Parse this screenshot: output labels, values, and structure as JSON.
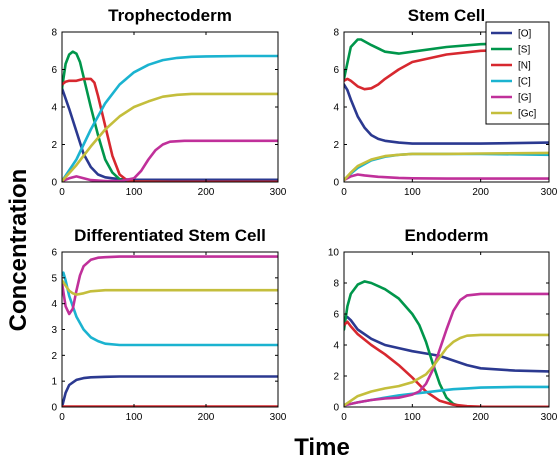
{
  "figure": {
    "ylabel": "Concentration",
    "xlabel": "Time"
  },
  "legend": [
    "[O]",
    "[S]",
    "[N]",
    "[C]",
    "[G]",
    "[Gc]"
  ],
  "colors": [
    "#2b3990",
    "#00964b",
    "#d7282f",
    "#1bb3d0",
    "#c0309a",
    "#c4be3c"
  ],
  "chart_data": [
    {
      "type": "line",
      "title": "Trophectoderm",
      "xlim": [
        0,
        300
      ],
      "ylim": [
        0,
        8
      ],
      "xticks": [
        0,
        100,
        200,
        300
      ],
      "yticks": [
        0,
        2,
        4,
        6,
        8
      ],
      "series": [
        {
          "name": "[O]",
          "x": [
            0,
            10,
            20,
            30,
            40,
            50,
            60,
            70,
            80,
            100,
            150,
            200,
            300
          ],
          "y": [
            5.0,
            3.9,
            2.7,
            1.5,
            0.8,
            0.4,
            0.25,
            0.2,
            0.15,
            0.12,
            0.12,
            0.12,
            0.12
          ]
        },
        {
          "name": "[S]",
          "x": [
            0,
            5,
            10,
            15,
            20,
            25,
            30,
            40,
            50,
            60,
            70,
            80,
            90,
            100,
            150,
            200,
            300
          ],
          "y": [
            5.0,
            6.3,
            6.8,
            6.95,
            6.85,
            6.4,
            5.6,
            4.0,
            2.5,
            1.2,
            0.5,
            0.15,
            0.05,
            0.02,
            0.01,
            0.01,
            0.01
          ]
        },
        {
          "name": "[N]",
          "x": [
            0,
            5,
            10,
            20,
            30,
            40,
            45,
            50,
            60,
            70,
            80,
            90,
            100,
            150,
            200,
            300
          ],
          "y": [
            5.2,
            5.35,
            5.4,
            5.4,
            5.5,
            5.5,
            5.3,
            4.6,
            3.0,
            1.4,
            0.4,
            0.1,
            0.03,
            0.01,
            0.01,
            0.01
          ]
        },
        {
          "name": "[C]",
          "x": [
            0,
            20,
            40,
            60,
            80,
            100,
            120,
            140,
            160,
            180,
            200,
            250,
            300
          ],
          "y": [
            0.05,
            1.2,
            2.8,
            4.2,
            5.2,
            5.85,
            6.25,
            6.5,
            6.62,
            6.68,
            6.7,
            6.72,
            6.72
          ]
        },
        {
          "name": "[G]",
          "x": [
            0,
            10,
            20,
            30,
            40,
            60,
            80,
            100,
            110,
            120,
            130,
            140,
            150,
            170,
            200,
            300
          ],
          "y": [
            0.05,
            0.2,
            0.3,
            0.2,
            0.1,
            0.05,
            0.05,
            0.2,
            0.6,
            1.2,
            1.7,
            2.0,
            2.15,
            2.2,
            2.2,
            2.2
          ]
        },
        {
          "name": "[Gc]",
          "x": [
            0,
            20,
            40,
            60,
            80,
            100,
            120,
            140,
            160,
            180,
            200,
            250,
            300
          ],
          "y": [
            0.05,
            0.9,
            1.9,
            2.8,
            3.5,
            4.0,
            4.3,
            4.55,
            4.65,
            4.7,
            4.7,
            4.7,
            4.7
          ]
        }
      ]
    },
    {
      "type": "line",
      "title": "Stem Cell",
      "xlim": [
        0,
        300
      ],
      "ylim": [
        0,
        8
      ],
      "xticks": [
        0,
        100,
        200,
        300
      ],
      "yticks": [
        0,
        2,
        4,
        6,
        8
      ],
      "series": [
        {
          "name": "[O]",
          "x": [
            0,
            5,
            10,
            20,
            30,
            40,
            50,
            60,
            80,
            100,
            150,
            200,
            300
          ],
          "y": [
            5.2,
            4.9,
            4.4,
            3.5,
            2.9,
            2.5,
            2.3,
            2.2,
            2.1,
            2.05,
            2.05,
            2.05,
            2.1
          ]
        },
        {
          "name": "[S]",
          "x": [
            0,
            10,
            20,
            25,
            30,
            40,
            60,
            80,
            100,
            150,
            200,
            300
          ],
          "y": [
            5.5,
            7.2,
            7.6,
            7.6,
            7.5,
            7.3,
            6.95,
            6.85,
            6.95,
            7.2,
            7.35,
            7.45
          ]
        },
        {
          "name": "[N]",
          "x": [
            0,
            5,
            10,
            20,
            30,
            40,
            50,
            60,
            80,
            100,
            150,
            200,
            300
          ],
          "y": [
            5.4,
            5.5,
            5.4,
            5.1,
            4.95,
            5.0,
            5.2,
            5.5,
            6.0,
            6.4,
            6.8,
            7.0,
            7.1
          ]
        },
        {
          "name": "[C]",
          "x": [
            0,
            10,
            20,
            40,
            60,
            80,
            100,
            150,
            200,
            300
          ],
          "y": [
            0.1,
            0.45,
            0.75,
            1.15,
            1.35,
            1.45,
            1.5,
            1.5,
            1.5,
            1.45
          ]
        },
        {
          "name": "[G]",
          "x": [
            0,
            10,
            20,
            30,
            50,
            80,
            100,
            150,
            200,
            300
          ],
          "y": [
            0.1,
            0.3,
            0.4,
            0.35,
            0.28,
            0.22,
            0.2,
            0.18,
            0.18,
            0.18
          ]
        },
        {
          "name": "[Gc]",
          "x": [
            0,
            10,
            20,
            40,
            60,
            80,
            100,
            150,
            200,
            300
          ],
          "y": [
            0.1,
            0.5,
            0.85,
            1.2,
            1.38,
            1.45,
            1.5,
            1.5,
            1.52,
            1.55
          ]
        }
      ]
    },
    {
      "type": "line",
      "title": "Differentiated Stem Cell",
      "xlim": [
        0,
        300
      ],
      "ylim": [
        0,
        6
      ],
      "xticks": [
        0,
        100,
        200,
        300
      ],
      "yticks": [
        0,
        1,
        2,
        3,
        4,
        5,
        6
      ],
      "series": [
        {
          "name": "[O]",
          "x": [
            0,
            5,
            10,
            20,
            30,
            40,
            60,
            80,
            100,
            200,
            300
          ],
          "y": [
            0.0,
            0.55,
            0.85,
            1.05,
            1.12,
            1.15,
            1.17,
            1.18,
            1.18,
            1.18,
            1.18
          ]
        },
        {
          "name": "[S]",
          "x": [
            0,
            100,
            200,
            300
          ],
          "y": [
            0.0,
            0.0,
            0.0,
            0.0
          ]
        },
        {
          "name": "[N]",
          "x": [
            0,
            100,
            200,
            300
          ],
          "y": [
            0.02,
            0.02,
            0.02,
            0.02
          ]
        },
        {
          "name": "[C]",
          "x": [
            0,
            2,
            5,
            10,
            20,
            30,
            40,
            50,
            60,
            80,
            100,
            150,
            200,
            300
          ],
          "y": [
            5.1,
            5.2,
            4.9,
            4.3,
            3.5,
            3.0,
            2.7,
            2.55,
            2.45,
            2.4,
            2.4,
            2.4,
            2.4,
            2.4
          ]
        },
        {
          "name": "[G]",
          "x": [
            0,
            5,
            10,
            15,
            20,
            25,
            30,
            40,
            50,
            60,
            80,
            100,
            200,
            300
          ],
          "y": [
            4.8,
            3.9,
            3.6,
            3.8,
            4.5,
            5.1,
            5.45,
            5.7,
            5.78,
            5.8,
            5.82,
            5.82,
            5.82,
            5.82
          ]
        },
        {
          "name": "[Gc]",
          "x": [
            0,
            5,
            10,
            15,
            20,
            30,
            40,
            60,
            80,
            100,
            200,
            300
          ],
          "y": [
            4.9,
            4.7,
            4.5,
            4.4,
            4.35,
            4.4,
            4.48,
            4.52,
            4.52,
            4.52,
            4.52,
            4.52
          ]
        }
      ]
    },
    {
      "type": "line",
      "title": "Endoderm",
      "xlim": [
        0,
        300
      ],
      "ylim": [
        0,
        10
      ],
      "xticks": [
        0,
        100,
        200,
        300
      ],
      "yticks": [
        0,
        2,
        4,
        6,
        8,
        10
      ],
      "series": [
        {
          "name": "[O]",
          "x": [
            0,
            5,
            10,
            20,
            40,
            60,
            80,
            100,
            120,
            140,
            160,
            180,
            200,
            250,
            300
          ],
          "y": [
            5.7,
            5.8,
            5.6,
            5.0,
            4.4,
            4.0,
            3.8,
            3.6,
            3.45,
            3.3,
            3.0,
            2.7,
            2.5,
            2.35,
            2.3
          ]
        },
        {
          "name": "[S]",
          "x": [
            0,
            5,
            10,
            20,
            30,
            40,
            60,
            80,
            100,
            110,
            120,
            130,
            140,
            150,
            160,
            170,
            180,
            200,
            300
          ],
          "y": [
            5.0,
            6.5,
            7.3,
            7.9,
            8.1,
            8.0,
            7.6,
            7.0,
            6.0,
            5.3,
            4.2,
            2.8,
            1.5,
            0.6,
            0.2,
            0.05,
            0.02,
            0.01,
            0.01
          ]
        },
        {
          "name": "[N]",
          "x": [
            0,
            5,
            10,
            20,
            40,
            60,
            80,
            100,
            120,
            140,
            160,
            180,
            200,
            300
          ],
          "y": [
            5.3,
            5.5,
            5.2,
            4.7,
            4.0,
            3.4,
            2.7,
            1.9,
            1.0,
            0.4,
            0.15,
            0.05,
            0.02,
            0.01
          ]
        },
        {
          "name": "[C]",
          "x": [
            0,
            20,
            40,
            60,
            80,
            100,
            120,
            140,
            160,
            180,
            200,
            250,
            300
          ],
          "y": [
            0.1,
            0.3,
            0.45,
            0.6,
            0.75,
            0.85,
            0.95,
            1.05,
            1.15,
            1.2,
            1.25,
            1.3,
            1.3
          ]
        },
        {
          "name": "[G]",
          "x": [
            0,
            20,
            40,
            60,
            80,
            100,
            110,
            120,
            130,
            140,
            150,
            160,
            170,
            180,
            200,
            250,
            300
          ],
          "y": [
            0.1,
            0.3,
            0.45,
            0.55,
            0.6,
            0.8,
            1.0,
            1.5,
            2.4,
            3.7,
            5.0,
            6.2,
            6.9,
            7.2,
            7.3,
            7.3,
            7.3
          ]
        },
        {
          "name": "[Gc]",
          "x": [
            0,
            20,
            40,
            60,
            80,
            100,
            120,
            130,
            140,
            150,
            160,
            170,
            180,
            200,
            250,
            300
          ],
          "y": [
            0.1,
            0.7,
            1.0,
            1.2,
            1.35,
            1.6,
            2.1,
            2.6,
            3.2,
            3.8,
            4.2,
            4.45,
            4.6,
            4.65,
            4.65,
            4.65
          ]
        }
      ]
    }
  ]
}
